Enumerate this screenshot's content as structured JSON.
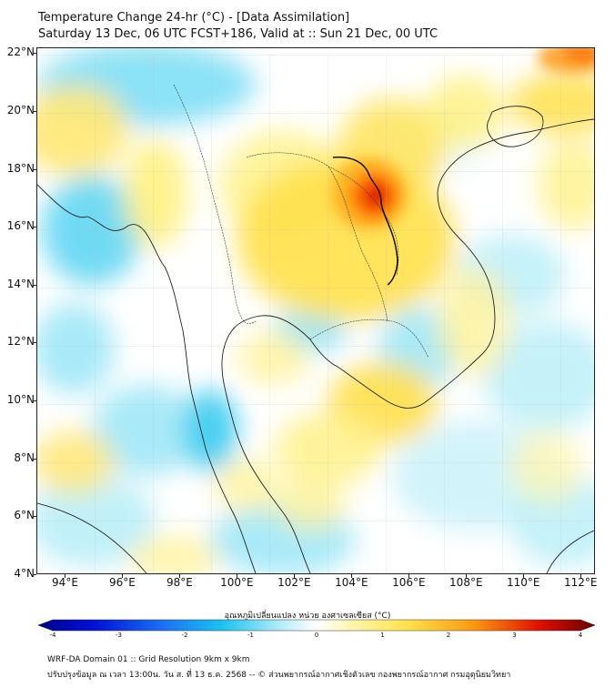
{
  "header": {
    "title_line1": "Temperature Change 24-hr (°C) - [Data Assimilation]",
    "title_line2": "Saturday 13 Dec, 06 UTC FCST+186, Valid at :: Sun 21 Dec, 00 UTC"
  },
  "map": {
    "lat_labels": [
      "22°N",
      "20°N",
      "18°N",
      "16°N",
      "14°N",
      "12°N",
      "10°N",
      "8°N",
      "6°N",
      "4°N"
    ],
    "lon_labels": [
      "94°E",
      "96°E",
      "98°E",
      "100°E",
      "102°E",
      "104°E",
      "106°E",
      "108°E",
      "110°E",
      "112°E"
    ],
    "lat_range": [
      4,
      22.2
    ],
    "lon_range": [
      93,
      112.5
    ],
    "colors": {
      "cold_strong": "#00008b",
      "cold": "#19c3f0",
      "neutral": "#ffffff",
      "warm": "#ffe44a",
      "hot": "#ff7a00",
      "very_hot": "#d40000",
      "coastline": "#222222"
    }
  },
  "colorbar": {
    "label": "อุณหภูมิเปลี่ยนแปลง หน่วย องศาเซลเซียส (°C)",
    "ticks": [
      "-4",
      "-3",
      "-2",
      "-1",
      "0",
      "1",
      "2",
      "3",
      "4"
    ],
    "min": -4,
    "max": 4
  },
  "footer": {
    "line1": "WRF-DA Domain 01 :: Grid Resolution 9km x 9km",
    "line2": "ปรับปรุงข้อมูล ณ เวลา 13:00น. วัน ส. ที่ 13 ธ.ค. 2568 -- © ส่วนพยากรณ์อากาศเชิงตัวเลข กองพยากรณ์อากาศ กรมอุตุนิยมวิทยา"
  }
}
